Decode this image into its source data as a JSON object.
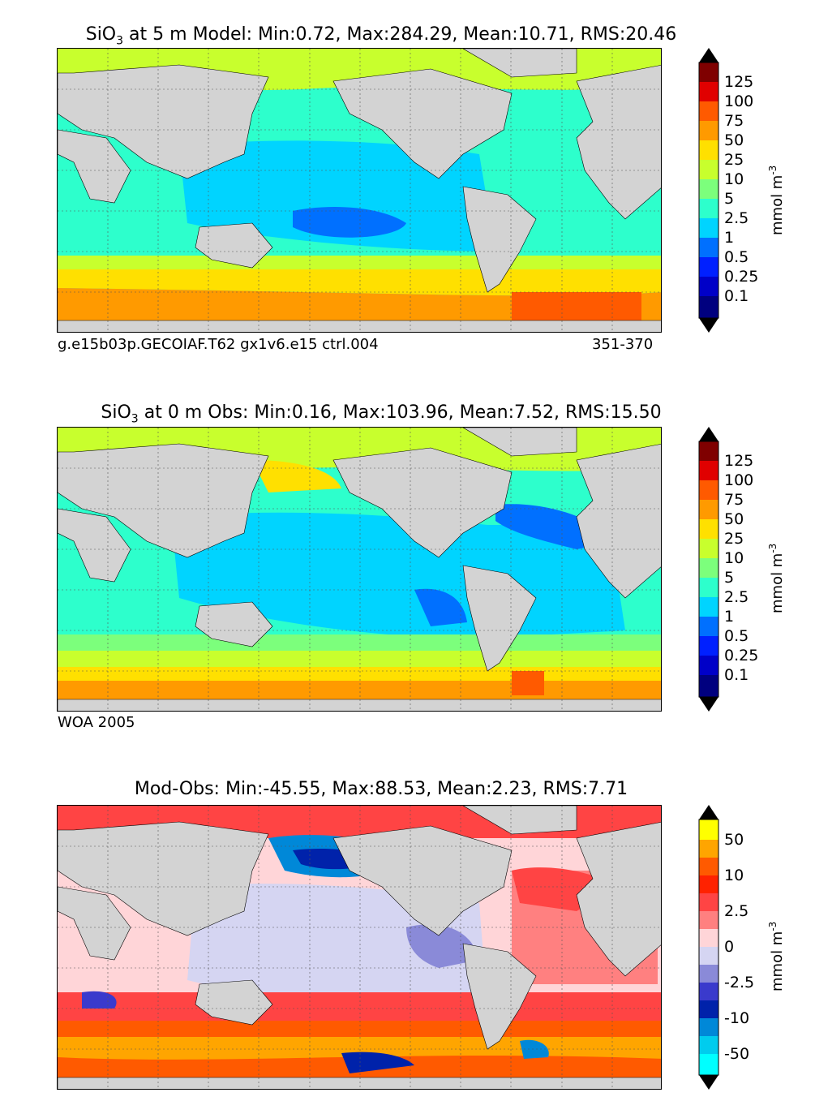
{
  "colors": {
    "land": "#d3d3d3",
    "model_scale": [
      "#00007f",
      "#0000c8",
      "#0020ff",
      "#0070ff",
      "#00d4ff",
      "#2dffcc",
      "#7cff7c",
      "#c8ff2d",
      "#ffe000",
      "#ff9a00",
      "#ff5a00",
      "#e00000",
      "#7f0000"
    ],
    "diff_scale": [
      "#00ffff",
      "#0088d8",
      "#0022aa",
      "#3a3acc",
      "#8a8ad8",
      "#d5d5f2",
      "#ffd5d8",
      "#ff8080",
      "#ff4444",
      "#ff2200",
      "#ff5a00",
      "#ffa500",
      "#ffff00"
    ]
  },
  "panels": [
    {
      "title_prefix": "SiO",
      "title_sub": "3",
      "title_suffix": " at 5 m Model: Min:0.72, Max:284.29, Mean:10.71, RMS:20.46",
      "caption_left": "g.e15b03p.GECOIAF.T62 gx1v6.e15 ctrl.004",
      "caption_right": "351-370",
      "colorbar": {
        "labels": [
          "125",
          "100",
          "75",
          "50",
          "25",
          "10",
          "5",
          "2.5",
          "1",
          "0.5",
          "0.25",
          "0.1"
        ],
        "units": "mmol m",
        "units_sup": "-3"
      }
    },
    {
      "title_prefix": "SiO",
      "title_sub": "3",
      "title_suffix": " at 0 m Obs: Min:0.16, Max:103.96, Mean:7.52, RMS:15.50",
      "caption_left": "WOA 2005",
      "caption_right": "",
      "colorbar": {
        "labels": [
          "125",
          "100",
          "75",
          "50",
          "25",
          "10",
          "5",
          "2.5",
          "1",
          "0.5",
          "0.25",
          "0.1"
        ],
        "units": "mmol m",
        "units_sup": "-3"
      }
    },
    {
      "title_prefix": "",
      "title_sub": "",
      "title_suffix": "Mod-Obs: Min:-45.55, Max:88.53, Mean:2.23, RMS:7.71",
      "caption_left": "",
      "caption_right": "",
      "colorbar": {
        "labels": [
          "50",
          "10",
          "2.5",
          "0",
          "-2.5",
          "-10",
          "-50"
        ],
        "units": "mmol m",
        "units_sup": "-3"
      }
    }
  ]
}
